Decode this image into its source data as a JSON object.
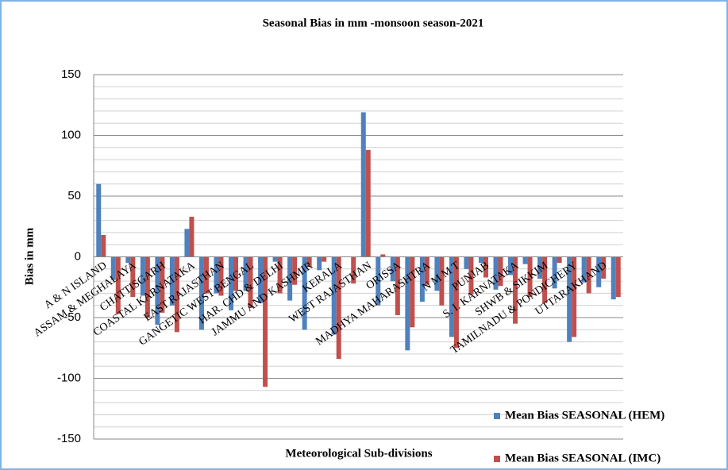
{
  "chart_data": {
    "type": "bar",
    "title": "Seasonal Bias  in mm -monsoon season-2021",
    "x_label": "Meteorological Sub-divisions",
    "y_label": "Bias in mm",
    "categories": [
      "A & N ISLAND",
      null,
      "ASSAM & MEGHALAYA",
      null,
      "CHATTISGARH",
      null,
      "COASTAL KARNATAKA",
      null,
      "EAST RAJASTHAN",
      null,
      "GANGETIC WEST BENGAL",
      null,
      "HAR. CHD & DELHI",
      null,
      "JAMMU AND KASHMIR",
      null,
      "KERALA",
      null,
      "WEST RAJASTHAN",
      null,
      "ORISSA",
      null,
      "MADHYA MAHARASHTRA",
      null,
      "N M M T",
      null,
      "PUNJAB",
      null,
      "S. I. KARNATAKA",
      null,
      "SHWB & SIKKIM",
      null,
      "TAMILNADU & PONDICHERY",
      null,
      "UTTARAKHAND",
      null
    ],
    "series": [
      {
        "name": "Mean Bias SEASONAL  (HEM)",
        "color": "#4f81bd",
        "values": [
          60,
          -19,
          -5,
          -32,
          -56,
          -40,
          23,
          -60,
          -30,
          -44,
          -28,
          -38,
          -4,
          -36,
          -60,
          -11,
          -64,
          0,
          119,
          -40,
          -20,
          -77,
          -37,
          -28,
          -66,
          -10,
          -5,
          -27,
          -15,
          -6,
          -18,
          -26,
          -70,
          -21,
          -25,
          -35
        ]
      },
      {
        "name": "Mean Bias SEASONAL  (IMC)",
        "color": "#c0504d",
        "values": [
          18,
          -47,
          -33,
          -50,
          -46,
          -62,
          33,
          -30,
          -32,
          -28,
          -42,
          -107,
          -30,
          -23,
          -8,
          -4,
          -84,
          -22,
          88,
          2,
          -48,
          -58,
          -23,
          -40,
          -75,
          -31,
          -17,
          -24,
          -55,
          -33,
          -38,
          -5,
          -66,
          -30,
          -18,
          -33
        ]
      }
    ],
    "ylim": [
      -150,
      150
    ],
    "yticks": [
      -150,
      -100,
      -50,
      0,
      50,
      100,
      150
    ],
    "grid": true,
    "legend": "bottom-right"
  }
}
